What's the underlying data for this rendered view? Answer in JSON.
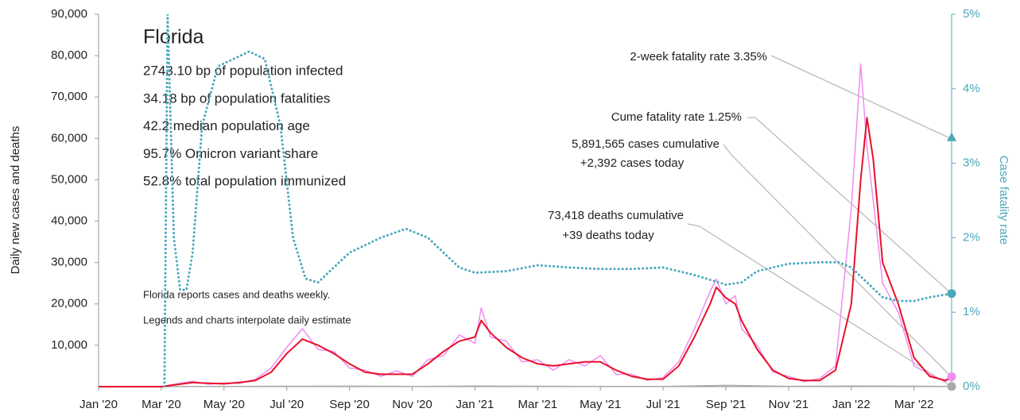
{
  "chart_data": {
    "type": "line",
    "title": "Florida",
    "stats": [
      "2743.10 bp of population infected",
      "34.18 bp of population fatalities",
      "42.2 median population age",
      "95.7% Omicron variant share",
      "52.8% total population immunized"
    ],
    "notes": [
      "Florida reports cases and deaths weekly.",
      "Legends and charts interpolate daily estimate"
    ],
    "annotations": [
      "2-week fatality rate 3.35%",
      "Cume fatality rate 1.25%",
      "5,891,565 cases cumulative",
      "+2,392 cases today",
      "73,418 deaths cumulative",
      "+39 deaths today"
    ],
    "y_label": "Daily new cases and deaths",
    "y2_label": "Case fatality rate",
    "xlim": [
      0,
      27.2
    ],
    "xticks": [
      {
        "value": 0,
        "label": "Jan '20"
      },
      {
        "value": 2,
        "label": "Mar '20"
      },
      {
        "value": 4,
        "label": "May '20"
      },
      {
        "value": 6,
        "label": "Jul '20"
      },
      {
        "value": 8,
        "label": "Sep '20"
      },
      {
        "value": 10,
        "label": "Nov '20"
      },
      {
        "value": 12,
        "label": "Jan '21"
      },
      {
        "value": 14,
        "label": "Mar '21"
      },
      {
        "value": 16,
        "label": "May '21"
      },
      {
        "value": 18,
        "label": "Jul '21"
      },
      {
        "value": 20,
        "label": "Sep '21"
      },
      {
        "value": 22,
        "label": "Nov '21"
      },
      {
        "value": 24,
        "label": "Jan '22"
      },
      {
        "value": 26,
        "label": "Mar '22"
      }
    ],
    "ylim": [
      0,
      90000
    ],
    "yticks": [
      {
        "value": 10000,
        "label": "10,000"
      },
      {
        "value": 20000,
        "label": "20,000"
      },
      {
        "value": 30000,
        "label": "30,000"
      },
      {
        "value": 40000,
        "label": "40,000"
      },
      {
        "value": 50000,
        "label": "50,000"
      },
      {
        "value": 60000,
        "label": "60,000"
      },
      {
        "value": 70000,
        "label": "70,000"
      },
      {
        "value": 80000,
        "label": "80,000"
      },
      {
        "value": 90000,
        "label": "90,000"
      }
    ],
    "y2lim": [
      0,
      5
    ],
    "y2ticks": [
      {
        "value": 0,
        "label": "0%"
      },
      {
        "value": 1,
        "label": "1%"
      },
      {
        "value": 2,
        "label": "2%"
      },
      {
        "value": 3,
        "label": "3%"
      },
      {
        "value": 4,
        "label": "4%"
      },
      {
        "value": 5,
        "label": "5%"
      }
    ],
    "series": [
      {
        "color": "#aaaaaa",
        "x": [
          0,
          2,
          4,
          6,
          8,
          10,
          12,
          14,
          16,
          18,
          20,
          22,
          24,
          26,
          27.2
        ],
        "values": [
          0,
          0,
          50,
          100,
          120,
          60,
          150,
          100,
          60,
          40,
          300,
          80,
          150,
          120,
          39
        ]
      },
      {
        "color": "#f08cf0",
        "x": [
          0,
          1,
          2,
          2.5,
          3,
          3.5,
          4,
          4.5,
          5,
          5.5,
          6,
          6.5,
          7,
          7.5,
          8,
          8.5,
          9,
          9.5,
          10,
          10.5,
          11,
          11.5,
          12,
          12.2,
          12.5,
          13,
          13.5,
          14,
          14.5,
          15,
          15.5,
          16,
          16.5,
          17,
          17.5,
          18,
          18.5,
          19,
          19.5,
          19.7,
          20,
          20.3,
          20.5,
          21,
          21.5,
          22,
          22.5,
          23,
          23.5,
          24,
          24.3,
          24.5,
          24.7,
          25,
          25.5,
          26,
          26.5,
          27,
          27.2
        ],
        "values": [
          0,
          0,
          0,
          700,
          1300,
          600,
          900,
          800,
          1800,
          4500,
          9500,
          14000,
          9000,
          8500,
          4500,
          4000,
          2500,
          3800,
          2500,
          6500,
          7500,
          12500,
          10500,
          19000,
          12000,
          11000,
          6000,
          6500,
          4000,
          6500,
          5000,
          7500,
          3000,
          3000,
          1500,
          2200,
          6000,
          14000,
          23000,
          26000,
          20000,
          22000,
          14000,
          10000,
          3500,
          2500,
          1200,
          2000,
          5000,
          43000,
          78000,
          58000,
          45000,
          25000,
          18000,
          5000,
          3000,
          1200,
          2392
        ]
      },
      {
        "color": "#e8102a",
        "x": [
          0,
          1,
          2,
          2.5,
          3,
          3.5,
          4,
          4.5,
          5,
          5.5,
          6,
          6.5,
          7,
          7.5,
          8,
          8.5,
          9,
          9.5,
          10,
          10.5,
          11,
          11.5,
          12,
          12.2,
          12.5,
          13,
          13.5,
          14,
          14.5,
          15,
          15.5,
          16,
          16.5,
          17,
          17.5,
          18,
          18.5,
          19,
          19.5,
          19.7,
          20,
          20.3,
          20.5,
          21,
          21.5,
          22,
          22.5,
          23,
          23.5,
          24,
          24.3,
          24.5,
          24.7,
          25,
          25.5,
          26,
          26.5,
          27,
          27.2
        ],
        "values": [
          0,
          0,
          0,
          500,
          1000,
          800,
          700,
          1000,
          1500,
          3500,
          8000,
          11500,
          10000,
          8000,
          5500,
          3500,
          3000,
          3000,
          3000,
          5500,
          8500,
          11000,
          12000,
          16000,
          13000,
          9500,
          7000,
          5500,
          5000,
          5500,
          6000,
          6000,
          4000,
          2500,
          1800,
          1800,
          5000,
          12000,
          20000,
          24000,
          21500,
          20000,
          16000,
          9000,
          4000,
          2000,
          1500,
          1500,
          4000,
          20000,
          50000,
          65000,
          55000,
          30000,
          20000,
          7000,
          2500,
          1500,
          2392
        ]
      },
      {
        "color": "#4aa8bc",
        "axis": "y2",
        "dotted": true,
        "x": [
          2.1,
          2.2,
          2.4,
          2.6,
          2.8,
          3,
          3.3,
          3.8,
          4.3,
          4.8,
          5.3,
          5.8,
          6.2,
          6.6,
          7,
          7.5,
          8,
          9,
          9.8,
          10.5,
          11,
          11.5,
          12,
          13,
          14,
          15,
          16,
          17,
          18,
          19,
          20,
          20.5,
          21,
          21.5,
          22,
          23,
          23.6,
          24,
          24.5,
          25,
          25.5,
          26,
          26.5,
          27.2
        ],
        "values": [
          0,
          5,
          2,
          1.3,
          1.3,
          1.8,
          3.5,
          4.3,
          4.4,
          4.5,
          4.4,
          3.5,
          2,
          1.45,
          1.4,
          1.6,
          1.8,
          2,
          2.12,
          2,
          1.8,
          1.6,
          1.53,
          1.55,
          1.63,
          1.6,
          1.58,
          1.58,
          1.6,
          1.5,
          1.37,
          1.4,
          1.55,
          1.6,
          1.65,
          1.67,
          1.67,
          1.6,
          1.4,
          1.2,
          1.15,
          1.15,
          1.2,
          1.25
        ]
      }
    ],
    "markers": [
      {
        "x": 27.2,
        "value": 3.35,
        "axis": "y2",
        "shape": "triangle",
        "color": "#4aa8bc"
      },
      {
        "x": 27.2,
        "value": 1.25,
        "axis": "y2",
        "shape": "circle",
        "color": "#4aa8bc"
      },
      {
        "x": 27.2,
        "value": 2392,
        "shape": "circle",
        "color": "#f08cf0"
      },
      {
        "x": 27.2,
        "value": 39,
        "shape": "circle",
        "color": "#aaaaaa"
      }
    ]
  }
}
